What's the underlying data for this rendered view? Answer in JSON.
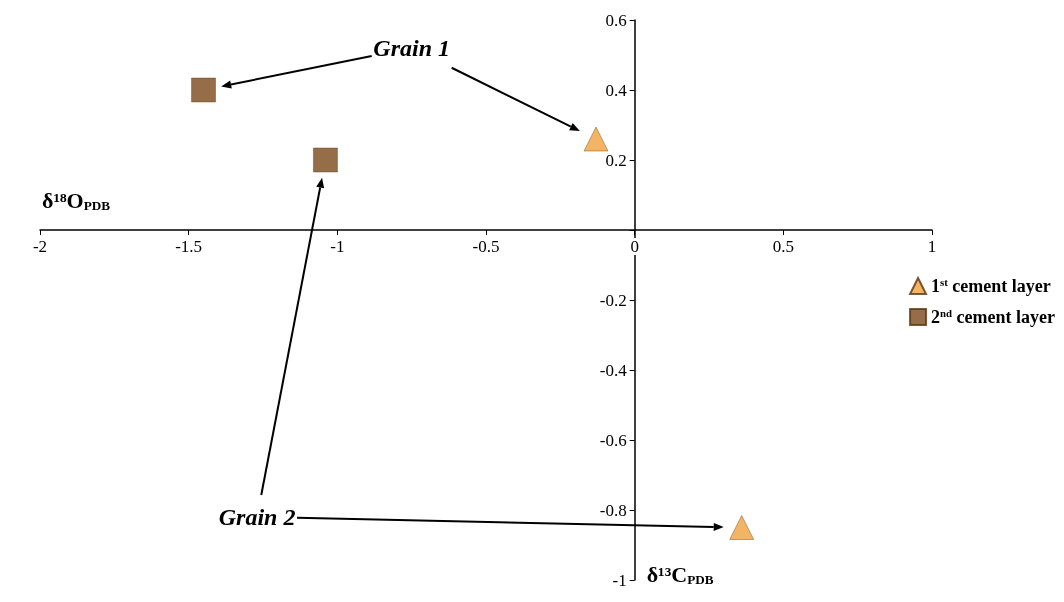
{
  "chart_data": {
    "type": "scatter",
    "xlabel": "δ¹⁸O$_{PDB}$",
    "ylabel": "δ¹³C$_{PDB}$",
    "xlim": [
      -2,
      1
    ],
    "xticks": [
      -2,
      -1.5,
      -1,
      -0.5,
      0,
      0.5,
      1
    ],
    "ylim": [
      -1,
      0.6
    ],
    "yticks": [
      -1,
      -0.8,
      -0.6,
      -0.4,
      -0.2,
      {
        "value": 0,
        "label": null
      },
      0.2,
      0.4,
      0.6
    ],
    "series": [
      {
        "name": "1$^{st}$ cement layer",
        "color": "#f0a23c",
        "marker": "triangle",
        "x": [
          -0.13,
          0.36
        ],
        "values": [
          0.26,
          -0.85
        ]
      },
      {
        "name": "2$^{nd}$ cement layer",
        "color": "#7a4a1c",
        "marker": "square",
        "x": [
          -1.45,
          -1.04
        ],
        "values": [
          0.4,
          0.2
        ]
      }
    ],
    "annotations": [
      "Grain 1",
      "Grain 2"
    ],
    "legend": "right",
    "grid": false
  }
}
